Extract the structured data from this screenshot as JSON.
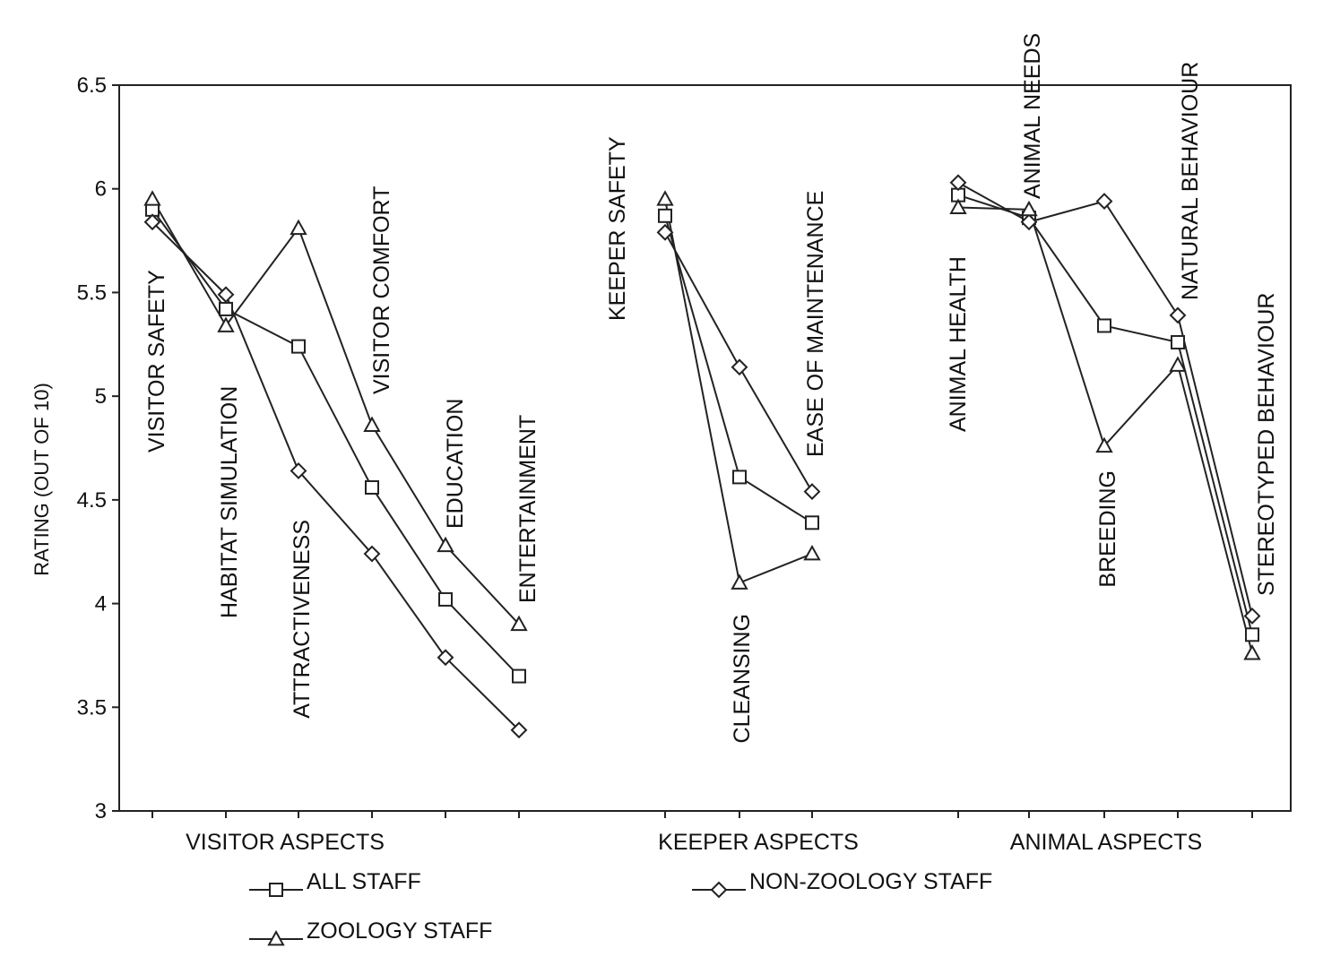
{
  "chart_data": {
    "type": "line",
    "title": "",
    "xlabel": "",
    "ylabel": "RATING  (OUT OF 10)",
    "ylim": [
      3,
      6.5
    ],
    "yticks": [
      "3",
      "3.5",
      "4",
      "4.5",
      "5",
      "5.5",
      "6",
      "6.5"
    ],
    "grid": false,
    "legend_position": "bottom",
    "groups": [
      {
        "name": "VISITOR ASPECTS",
        "categories": [
          "VISITOR SAFETY",
          "HABITAT SIMULATION",
          "ATTRACTIVENESS",
          "VISITOR COMFORT",
          "EDUCATION",
          "ENTERTAINMENT"
        ],
        "series": [
          {
            "name": "ALL STAFF",
            "marker": "square",
            "values": [
              5.9,
              5.42,
              5.24,
              4.56,
              4.02,
              3.65
            ]
          },
          {
            "name": "NON-ZOOLOGY STAFF",
            "marker": "diamond",
            "values": [
              5.84,
              5.49,
              4.64,
              4.24,
              3.74,
              3.39
            ]
          },
          {
            "name": "ZOOLOGY STAFF",
            "marker": "triangle",
            "values": [
              5.95,
              5.34,
              5.81,
              4.86,
              4.28,
              3.9
            ]
          }
        ]
      },
      {
        "name": "KEEPER ASPECTS",
        "categories": [
          "KEEPER SAFETY",
          "CLEANSING",
          "EASE OF MAINTENANCE"
        ],
        "series": [
          {
            "name": "ALL STAFF",
            "marker": "square",
            "values": [
              5.87,
              4.61,
              4.39
            ]
          },
          {
            "name": "NON-ZOOLOGY STAFF",
            "marker": "diamond",
            "values": [
              5.79,
              5.14,
              4.54
            ]
          },
          {
            "name": "ZOOLOGY STAFF",
            "marker": "triangle",
            "values": [
              5.95,
              4.1,
              4.24
            ]
          }
        ]
      },
      {
        "name": "ANIMAL  ASPECTS",
        "categories": [
          "ANIMAL HEALTH",
          "ANIMAL NEEDS",
          "BREEDING",
          "NATURAL BEHAVIOUR",
          "STEREOTYPED BEHAVIOUR"
        ],
        "series": [
          {
            "name": "ALL STAFF",
            "marker": "square",
            "values": [
              5.97,
              5.86,
              5.34,
              5.26,
              3.85
            ]
          },
          {
            "name": "NON-ZOOLOGY STAFF",
            "marker": "diamond",
            "values": [
              6.03,
              5.84,
              5.94,
              5.39,
              3.94
            ]
          },
          {
            "name": "ZOOLOGY STAFF",
            "marker": "triangle",
            "values": [
              5.91,
              5.9,
              4.76,
              5.15,
              3.76
            ]
          }
        ]
      }
    ],
    "legend": [
      {
        "label": "ALL STAFF",
        "marker": "square"
      },
      {
        "label": "NON-ZOOLOGY STAFF",
        "marker": "diamond"
      },
      {
        "label": "ZOOLOGY STAFF",
        "marker": "triangle"
      }
    ]
  }
}
